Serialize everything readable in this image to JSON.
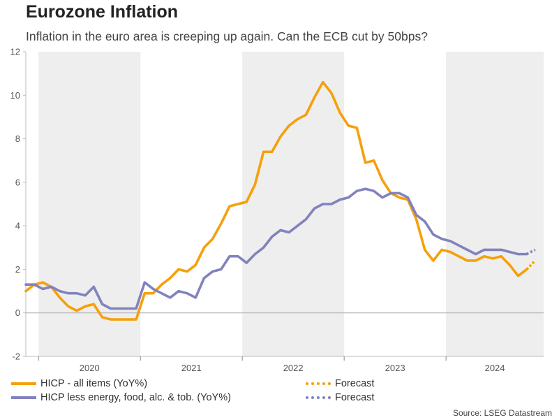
{
  "header": {
    "title": "Eurozone Inflation",
    "subtitle": "Inflation in the euro area is creeping up again. Can the ECB cut by 50bps?"
  },
  "source": "Source: LSEG Datastream",
  "colors": {
    "hicp": "#F5A00B",
    "core": "#8282BE",
    "band": "#EEEEEE",
    "zero": "#AAAAAA"
  },
  "chart_data": {
    "type": "line",
    "title": "Eurozone Inflation",
    "ylim": [
      -2,
      12
    ],
    "yticks": [
      -2,
      0,
      2,
      4,
      6,
      8,
      10,
      12
    ],
    "xlim": [
      "2019-11",
      "2024-12"
    ],
    "year_labels": [
      "2020",
      "2021",
      "2022",
      "2023",
      "2024"
    ],
    "shaded_years": [
      "2020",
      "2022",
      "2024"
    ],
    "legend": "bottom",
    "series": [
      {
        "name": "HICP - all items (YoY%)",
        "style": "solid",
        "x": [
          "2019-11",
          "2019-12",
          "2020-01",
          "2020-02",
          "2020-03",
          "2020-04",
          "2020-05",
          "2020-06",
          "2020-07",
          "2020-08",
          "2020-09",
          "2020-10",
          "2020-11",
          "2020-12",
          "2021-01",
          "2021-02",
          "2021-03",
          "2021-04",
          "2021-05",
          "2021-06",
          "2021-07",
          "2021-08",
          "2021-09",
          "2021-10",
          "2021-11",
          "2021-12",
          "2022-01",
          "2022-02",
          "2022-03",
          "2022-04",
          "2022-05",
          "2022-06",
          "2022-07",
          "2022-08",
          "2022-09",
          "2022-10",
          "2022-11",
          "2022-12",
          "2023-01",
          "2023-02",
          "2023-03",
          "2023-04",
          "2023-05",
          "2023-06",
          "2023-07",
          "2023-08",
          "2023-09",
          "2023-10",
          "2023-11",
          "2023-12",
          "2024-01",
          "2024-02",
          "2024-03",
          "2024-04",
          "2024-05",
          "2024-06",
          "2024-07",
          "2024-08",
          "2024-09",
          "2024-10"
        ],
        "values": [
          1.0,
          1.3,
          1.4,
          1.2,
          0.7,
          0.3,
          0.1,
          0.3,
          0.4,
          -0.2,
          -0.3,
          -0.3,
          -0.3,
          -0.3,
          0.9,
          0.9,
          1.3,
          1.6,
          2.0,
          1.9,
          2.2,
          3.0,
          3.4,
          4.1,
          4.9,
          5.0,
          5.1,
          5.9,
          7.4,
          7.4,
          8.1,
          8.6,
          8.9,
          9.1,
          9.9,
          10.6,
          10.1,
          9.2,
          8.6,
          8.5,
          6.9,
          7.0,
          6.1,
          5.5,
          5.3,
          5.2,
          4.3,
          2.9,
          2.4,
          2.9,
          2.8,
          2.6,
          2.4,
          2.4,
          2.6,
          2.5,
          2.6,
          2.2,
          1.7,
          2.0
        ]
      },
      {
        "name": "Forecast",
        "style": "dotted",
        "x": [
          "2024-10",
          "2024-11"
        ],
        "values": [
          2.0,
          2.4
        ]
      },
      {
        "name": "HICP less energy, food, alc. & tob. (YoY%)",
        "style": "solid",
        "x": [
          "2019-11",
          "2019-12",
          "2020-01",
          "2020-02",
          "2020-03",
          "2020-04",
          "2020-05",
          "2020-06",
          "2020-07",
          "2020-08",
          "2020-09",
          "2020-10",
          "2020-11",
          "2020-12",
          "2021-01",
          "2021-02",
          "2021-03",
          "2021-04",
          "2021-05",
          "2021-06",
          "2021-07",
          "2021-08",
          "2021-09",
          "2021-10",
          "2021-11",
          "2021-12",
          "2022-01",
          "2022-02",
          "2022-03",
          "2022-04",
          "2022-05",
          "2022-06",
          "2022-07",
          "2022-08",
          "2022-09",
          "2022-10",
          "2022-11",
          "2022-12",
          "2023-01",
          "2023-02",
          "2023-03",
          "2023-04",
          "2023-05",
          "2023-06",
          "2023-07",
          "2023-08",
          "2023-09",
          "2023-10",
          "2023-11",
          "2023-12",
          "2024-01",
          "2024-02",
          "2024-03",
          "2024-04",
          "2024-05",
          "2024-06",
          "2024-07",
          "2024-08",
          "2024-09",
          "2024-10"
        ],
        "values": [
          1.3,
          1.3,
          1.1,
          1.2,
          1.0,
          0.9,
          0.9,
          0.8,
          1.2,
          0.4,
          0.2,
          0.2,
          0.2,
          0.2,
          1.4,
          1.1,
          0.9,
          0.7,
          1.0,
          0.9,
          0.7,
          1.6,
          1.9,
          2.0,
          2.6,
          2.6,
          2.3,
          2.7,
          3.0,
          3.5,
          3.8,
          3.7,
          4.0,
          4.3,
          4.8,
          5.0,
          5.0,
          5.2,
          5.3,
          5.6,
          5.7,
          5.6,
          5.3,
          5.5,
          5.5,
          5.3,
          4.5,
          4.2,
          3.6,
          3.4,
          3.3,
          3.1,
          2.9,
          2.7,
          2.9,
          2.9,
          2.9,
          2.8,
          2.7,
          2.7
        ]
      },
      {
        "name": "Forecast",
        "style": "dotted",
        "x": [
          "2024-10",
          "2024-11"
        ],
        "values": [
          2.7,
          2.9
        ]
      }
    ]
  },
  "legend": {
    "hicp": "HICP - all items (YoY%)",
    "hicp_forecast": "Forecast",
    "core": "HICP less energy, food, alc. & tob. (YoY%)",
    "core_forecast": "Forecast"
  }
}
